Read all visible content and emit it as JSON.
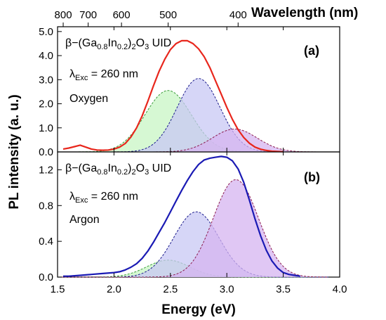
{
  "chart_data": [
    {
      "panel": "(a)",
      "type": "area",
      "annotations": {
        "formula": {
          "beta": "β",
          "p1": "−(Ga",
          "s1": "0.8",
          "p2": "In",
          "s2": "0.2",
          "p3": ")",
          "s3": "2",
          "p4": "O",
          "s4": "3",
          "p5": " UID"
        },
        "excitation": {
          "lambda": "λ",
          "sub": "Exc",
          "rest": " = 260 nm"
        },
        "atmosphere": "Oxygen",
        "panel_label": "(a)"
      },
      "xlim": [
        1.5,
        4.0
      ],
      "ylim": [
        0,
        5.2
      ],
      "yticks": [
        "0.0",
        "1.0",
        "2.0",
        "3.0",
        "4.0",
        "5.0"
      ],
      "ytick_values": [
        0,
        1,
        2,
        3,
        4,
        5
      ],
      "grid": false,
      "measured": {
        "color": "#e8261c",
        "x": [
          1.55,
          1.6,
          1.65,
          1.7,
          1.75,
          1.8,
          1.85,
          1.9,
          1.95,
          2.0,
          2.05,
          2.1,
          2.15,
          2.2,
          2.25,
          2.3,
          2.35,
          2.4,
          2.45,
          2.5,
          2.55,
          2.6,
          2.65,
          2.7,
          2.75,
          2.8,
          2.85,
          2.9,
          2.95,
          3.0,
          3.05,
          3.1,
          3.15,
          3.2,
          3.25,
          3.3,
          3.35,
          3.4,
          3.45,
          3.5
        ],
        "y": [
          0.12,
          0.16,
          0.22,
          0.28,
          0.2,
          0.12,
          0.08,
          0.07,
          0.08,
          0.12,
          0.2,
          0.35,
          0.62,
          1.0,
          1.5,
          2.1,
          2.75,
          3.35,
          3.85,
          4.25,
          4.5,
          4.62,
          4.62,
          4.5,
          4.28,
          3.95,
          3.5,
          2.95,
          2.4,
          1.85,
          1.35,
          0.92,
          0.6,
          0.36,
          0.2,
          0.11,
          0.06,
          0.03,
          0.02,
          0.01
        ]
      },
      "components": [
        {
          "center": 2.48,
          "amplitude": 2.55,
          "width": 0.205,
          "fill": "#c8f5c4",
          "stroke": "#3a9c3a"
        },
        {
          "center": 2.75,
          "amplitude": 3.05,
          "width": 0.19,
          "fill": "#c8c8f4",
          "stroke": "#1c1c8c"
        },
        {
          "center": 3.07,
          "amplitude": 0.95,
          "width": 0.2,
          "fill": "#d6b4f0",
          "stroke": "#8c1c50"
        }
      ]
    },
    {
      "panel": "(b)",
      "type": "area",
      "annotations": {
        "formula": {
          "beta": "β",
          "p1": "−(Ga",
          "s1": "0.8",
          "p2": "In",
          "s2": "0.2",
          "p3": ")",
          "s3": "2",
          "p4": "O",
          "s4": "3",
          "p5": " UID"
        },
        "excitation": {
          "lambda": "λ",
          "sub": "Exc",
          "rest": " = 260 nm"
        },
        "atmosphere": "Argon",
        "panel_label": "(b)"
      },
      "xlim": [
        1.5,
        4.0
      ],
      "ylim": [
        0,
        1.4
      ],
      "yticks": [
        "0.0",
        "0.4",
        "0.8",
        "1.2"
      ],
      "ytick_values": [
        0,
        0.4,
        0.8,
        1.2
      ],
      "grid": false,
      "measured": {
        "color": "#1a1ab4",
        "x": [
          1.55,
          1.6,
          1.7,
          1.8,
          1.9,
          2.0,
          2.05,
          2.1,
          2.15,
          2.2,
          2.25,
          2.3,
          2.35,
          2.4,
          2.45,
          2.5,
          2.55,
          2.6,
          2.65,
          2.7,
          2.75,
          2.8,
          2.85,
          2.9,
          2.95,
          3.0,
          3.05,
          3.1,
          3.15,
          3.2,
          3.25,
          3.3,
          3.35,
          3.4,
          3.45,
          3.5,
          3.55,
          3.6,
          3.65
        ],
        "y": [
          0.01,
          0.01,
          0.02,
          0.03,
          0.04,
          0.05,
          0.06,
          0.08,
          0.11,
          0.15,
          0.21,
          0.29,
          0.39,
          0.5,
          0.61,
          0.73,
          0.85,
          0.97,
          1.08,
          1.18,
          1.26,
          1.31,
          1.33,
          1.34,
          1.35,
          1.34,
          1.3,
          1.21,
          1.06,
          0.86,
          0.65,
          0.46,
          0.3,
          0.18,
          0.1,
          0.05,
          0.03,
          0.02,
          0.01
        ]
      },
      "components": [
        {
          "center": 2.48,
          "amplitude": 0.19,
          "width": 0.19,
          "fill": "#c8f5c4",
          "stroke": "#3a9c3a"
        },
        {
          "center": 2.73,
          "amplitude": 0.73,
          "width": 0.2,
          "fill": "#c8c8f4",
          "stroke": "#1c1c8c"
        },
        {
          "center": 3.08,
          "amplitude": 1.09,
          "width": 0.2,
          "fill": "#d6b4f0",
          "stroke": "#8c1c50"
        }
      ]
    }
  ],
  "axes": {
    "x_label": "Energy (eV)",
    "x_ticks": [
      "1.5",
      "2.0",
      "2.5",
      "3.0",
      "3.5",
      "4.0"
    ],
    "x_tick_values": [
      1.5,
      2.0,
      2.5,
      3.0,
      3.5,
      4.0
    ],
    "y_label": "PL intensity (a. u.)",
    "top_label": "Wavelength (nm)",
    "top_ticks": [
      "800",
      "700",
      "600",
      "500",
      "400"
    ],
    "top_tick_values_nm": [
      800,
      700,
      600,
      500,
      400
    ]
  }
}
